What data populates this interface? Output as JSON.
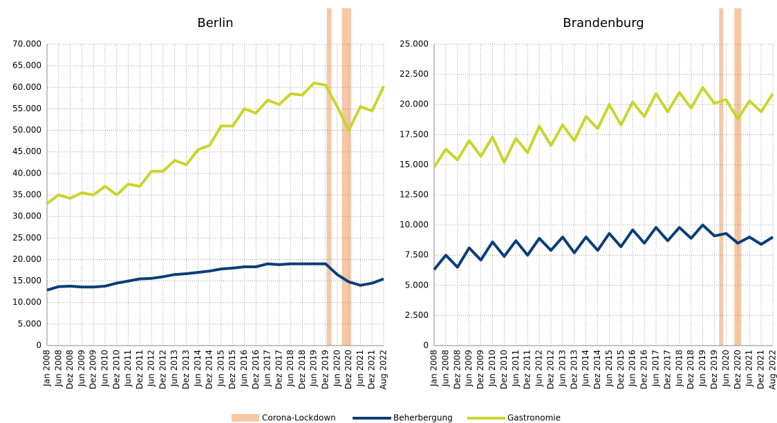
{
  "chart_data": [
    {
      "type": "line",
      "title": "Berlin",
      "categories": [
        "Jan 2008",
        "Jun 2008",
        "Dez 2008",
        "Jun 2009",
        "Dez 2009",
        "Jun 2010",
        "Dez 2010",
        "Jun 2011",
        "Dez 2011",
        "Jun 2012",
        "Dez 2012",
        "Jun 2013",
        "Dez 2013",
        "Jun 2014",
        "Dez 2014",
        "Jun 2015",
        "Dez 2015",
        "Jun 2016",
        "Dez 2016",
        "Jun 2017",
        "Dez 2017",
        "Jun 2018",
        "Dez 2018",
        "Jun 2019",
        "Dez 2019",
        "Jun 2020",
        "Dez 2020",
        "Jun 2021",
        "Dez 2021",
        "Aug 2022"
      ],
      "series": [
        {
          "name": "Beherbergung",
          "color": "#0a3d79",
          "values": [
            12900,
            13700,
            13800,
            13600,
            13600,
            13800,
            14500,
            15000,
            15500,
            15600,
            16000,
            16500,
            16700,
            17000,
            17300,
            17800,
            18000,
            18300,
            18300,
            19000,
            18800,
            19000,
            19000,
            19000,
            19000,
            16500,
            14800,
            14000,
            14500,
            15500
          ]
        },
        {
          "name": "Gastronomie",
          "color": "#c9d52c",
          "values": [
            33000,
            35000,
            34200,
            35500,
            35000,
            37000,
            35000,
            37500,
            37000,
            40500,
            40500,
            43000,
            42000,
            45500,
            46500,
            51000,
            51000,
            55000,
            54000,
            57000,
            56000,
            58500,
            58200,
            61000,
            60500,
            55500,
            50000,
            55500,
            54500,
            60200
          ]
        }
      ],
      "lockdown": {
        "name": "Corona-Lockdown",
        "color": "#f5c8a6",
        "spans": [
          [
            24.1,
            24.5
          ],
          [
            25.4,
            26.2
          ]
        ]
      },
      "ylim": [
        0,
        70000
      ],
      "yticks": [
        0,
        {
          "value": 5000,
          "label": "5.000"
        },
        {
          "value": 10000,
          "label": "10.000"
        },
        {
          "value": 15000,
          "label": "15.000"
        },
        {
          "value": 20000,
          "label": "20.000"
        },
        {
          "value": 25000,
          "label": "25.000"
        },
        {
          "value": 30000,
          "label": "30.000"
        },
        {
          "value": 35000,
          "label": "35.000"
        },
        {
          "value": 40000,
          "label": "40.000"
        },
        {
          "value": 45000,
          "label": "45.000"
        },
        {
          "value": 50000,
          "label": "50.000"
        },
        {
          "value": 55000,
          "label": "55.000"
        },
        {
          "value": 60000,
          "label": "60.000"
        },
        {
          "value": 65000,
          "label": "65.000"
        },
        {
          "value": 70000,
          "label": "70.000"
        }
      ],
      "grid": true
    },
    {
      "type": "line",
      "title": "Brandenburg",
      "categories": [
        "Jan 2008",
        "Jun 2008",
        "Dez 2008",
        "Jun 2009",
        "Dez 2009",
        "Jun 2010",
        "Dez 2010",
        "Jun 2011",
        "Dez 2011",
        "Jun 2012",
        "Dez 2012",
        "Jun 2013",
        "Dez 2013",
        "Jun 2014",
        "Dez 2014",
        "Jun 2015",
        "Dez 2015",
        "Jun 2016",
        "Dez 2016",
        "Jun 2017",
        "Dez 2017",
        "Jun 2018",
        "Dez 2018",
        "Jun 2019",
        "Dez 2019",
        "Jun 2020",
        "Dez 2020",
        "Jun 2021",
        "Dez 2021",
        "Aug 2022"
      ],
      "series": [
        {
          "name": "Beherbergung",
          "color": "#0a3d79",
          "values": [
            6300,
            7500,
            6500,
            8100,
            7100,
            8600,
            7400,
            8700,
            7500,
            8900,
            7900,
            9000,
            7700,
            9000,
            7900,
            9300,
            8200,
            9600,
            8500,
            9800,
            8700,
            9800,
            8900,
            10000,
            9100,
            9300,
            8500,
            9000,
            8400,
            9000
          ]
        },
        {
          "name": "Gastronomie",
          "color": "#c9d52c",
          "values": [
            14800,
            16300,
            15400,
            17000,
            15700,
            17300,
            15200,
            17200,
            16000,
            18200,
            16600,
            18300,
            17000,
            19000,
            18000,
            20000,
            18300,
            20200,
            19000,
            20900,
            19400,
            21000,
            19700,
            21400,
            20100,
            20400,
            18800,
            20300,
            19400,
            20900
          ]
        }
      ],
      "lockdown": {
        "name": "Corona-Lockdown",
        "color": "#f5c8a6",
        "spans": [
          [
            24.4,
            24.75
          ],
          [
            25.7,
            26.3
          ]
        ]
      },
      "ylim": [
        0,
        25000
      ],
      "yticks": [
        0,
        {
          "value": 2500,
          "label": "2.500"
        },
        {
          "value": 5000,
          "label": "5.000"
        },
        {
          "value": 7500,
          "label": "7.500"
        },
        {
          "value": 10000,
          "label": "10.000"
        },
        {
          "value": 12500,
          "label": "12.500"
        },
        {
          "value": 15000,
          "label": "15.000"
        },
        {
          "value": 17500,
          "label": "17.500"
        },
        {
          "value": 20000,
          "label": "20.000"
        },
        {
          "value": 22500,
          "label": "22.500"
        },
        {
          "value": 25000,
          "label": "25.000"
        }
      ],
      "grid": true
    }
  ]
}
